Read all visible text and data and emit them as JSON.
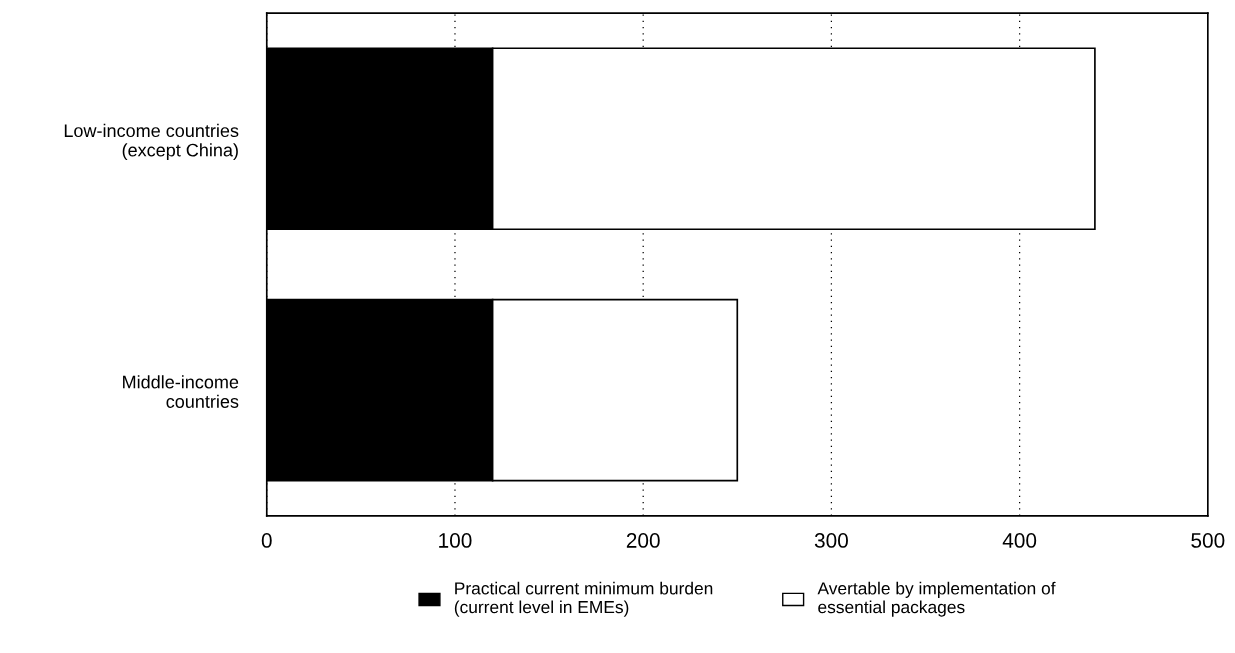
{
  "chart_data": {
    "type": "bar",
    "orientation": "horizontal",
    "stacked": true,
    "categories": [
      "Low-income countries\n(except China)",
      "Middle-income\ncountries"
    ],
    "series": [
      {
        "name": "Practical current minimum burden\n(current level in EMEs)",
        "color": "#000000",
        "values": [
          120,
          120
        ]
      },
      {
        "name": "Avertable by implementation of\nessential packages",
        "color": "#ffffff",
        "values": [
          320,
          130
        ]
      }
    ],
    "xlim": [
      0,
      500
    ],
    "xticks": [
      0,
      100,
      200,
      300,
      400,
      500
    ],
    "grid": "x",
    "legend": "bottom"
  }
}
